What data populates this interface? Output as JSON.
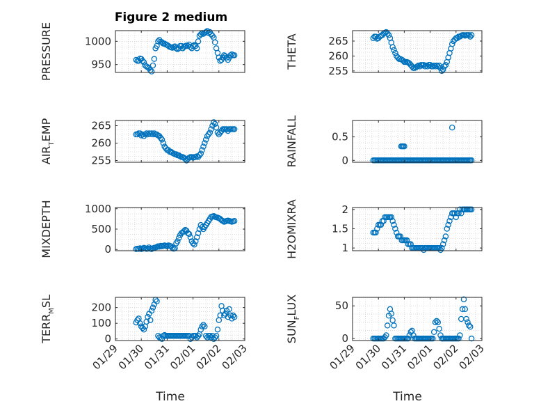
{
  "figure_title": "Figure 2 medium",
  "xlabel": "Time",
  "x_ticks": [
    "01/29",
    "01/30",
    "01/31",
    "02/01",
    "02/02",
    "02/03"
  ],
  "marker_color": "#0072bd",
  "grid_color": "#c8c8c8",
  "axis_color": "#262626",
  "chart_data": [
    {
      "type": "scatter",
      "ylabel": "PRESSURE",
      "ylabel_sub": "",
      "ylabel_sub_index": 0,
      "ylim": [
        933,
        1023
      ],
      "yticks": [
        950,
        1000
      ],
      "ytick_labels": [
        "950",
        "1000"
      ],
      "grid": true,
      "x": [
        0.8,
        0.85,
        0.9,
        0.95,
        1.0,
        1.05,
        1.1,
        1.15,
        1.2,
        1.25,
        1.3,
        1.35,
        1.4,
        1.45,
        1.5,
        1.55,
        1.6,
        1.65,
        1.7,
        1.75,
        1.8,
        1.85,
        1.9,
        1.95,
        2.0,
        2.05,
        2.1,
        2.15,
        2.2,
        2.25,
        2.3,
        2.35,
        2.4,
        2.45,
        2.5,
        2.55,
        2.6,
        2.65,
        2.7,
        2.75,
        2.8,
        2.85,
        2.9,
        2.95,
        3.0,
        3.05,
        3.1,
        3.15,
        3.2,
        3.25,
        3.3,
        3.35,
        3.4,
        3.45,
        3.5,
        3.55,
        3.6,
        3.65,
        3.7,
        3.75,
        3.8,
        3.85,
        3.9,
        3.95,
        4.0,
        4.05,
        4.1,
        4.15,
        4.2,
        4.25,
        4.3,
        4.35,
        4.4,
        4.45,
        4.5,
        4.55,
        4.6
      ],
      "y": [
        960,
        958,
        958,
        963,
        962,
        958,
        955,
        948,
        946,
        944,
        942,
        938,
        935,
        948,
        962,
        985,
        990,
        1000,
        1003,
        999,
        998,
        995,
        995,
        993,
        992,
        990,
        988,
        987,
        986,
        988,
        989,
        985,
        983,
        985,
        990,
        990,
        985,
        988,
        990,
        991,
        990,
        993,
        988,
        985,
        990,
        992,
        990,
        985,
        1000,
        1012,
        1015,
        1018,
        1016,
        1018,
        1020,
        1022,
        1018,
        1020,
        1015,
        1012,
        1008,
        998,
        985,
        975,
        965,
        958,
        960,
        965,
        970,
        968,
        965,
        960,
        965,
        970,
        972,
        970,
        970
      ]
    },
    {
      "type": "scatter",
      "ylabel": "THETA",
      "ylabel_sub": "",
      "ylabel_sub_index": 0,
      "ylim": [
        254.5,
        268.5
      ],
      "yticks": [
        255,
        260,
        265
      ],
      "ytick_labels": [
        "255",
        "260",
        "265"
      ],
      "grid": true,
      "x": [
        0.8,
        0.85,
        0.9,
        0.95,
        1.0,
        1.05,
        1.1,
        1.15,
        1.2,
        1.25,
        1.3,
        1.35,
        1.4,
        1.45,
        1.5,
        1.55,
        1.6,
        1.65,
        1.7,
        1.75,
        1.8,
        1.85,
        1.9,
        1.95,
        2.0,
        2.05,
        2.1,
        2.15,
        2.2,
        2.25,
        2.3,
        2.35,
        2.4,
        2.45,
        2.5,
        2.55,
        2.6,
        2.65,
        2.7,
        2.75,
        2.8,
        2.85,
        2.9,
        2.95,
        3.0,
        3.05,
        3.1,
        3.15,
        3.2,
        3.25,
        3.3,
        3.35,
        3.4,
        3.45,
        3.5,
        3.55,
        3.6,
        3.65,
        3.7,
        3.75,
        3.8,
        3.85,
        3.9,
        3.95,
        4.0,
        4.05,
        4.1,
        4.15,
        4.2,
        4.25,
        4.3,
        4.35,
        4.4,
        4.45,
        4.5,
        4.55,
        4.6
      ],
      "y": [
        266,
        266.5,
        266.5,
        265.8,
        266,
        266.5,
        266.8,
        267,
        267.5,
        267.8,
        268,
        267.5,
        267,
        266,
        264.5,
        263,
        262,
        261,
        260,
        259.5,
        259,
        259,
        258.8,
        258.5,
        258,
        258,
        258,
        257.8,
        257.5,
        257,
        256.5,
        256,
        256,
        256.2,
        256.5,
        256.8,
        256.5,
        257,
        256.8,
        257,
        256.5,
        256.8,
        256.5,
        257,
        257,
        256.5,
        256.5,
        256.8,
        256.5,
        256.8,
        256.5,
        256.8,
        256,
        255,
        255.5,
        256.5,
        257,
        258,
        259.5,
        261,
        262.5,
        264,
        265,
        265.5,
        266,
        266,
        266.5,
        266.5,
        266.8,
        267,
        267,
        266.8,
        267,
        267,
        267,
        266.5,
        267
      ]
    },
    {
      "type": "scatter",
      "ylabel": "AIR",
      "ylabel_sub": "T",
      "ylabel_sub_index": 3,
      "ylabel_tail": "EMP",
      "ylim": [
        254.5,
        266.5
      ],
      "yticks": [
        255,
        260,
        265
      ],
      "ytick_labels": [
        "255",
        "260",
        "265"
      ],
      "grid": true,
      "x": [
        0.8,
        0.85,
        0.9,
        0.95,
        1.0,
        1.05,
        1.1,
        1.15,
        1.2,
        1.25,
        1.3,
        1.35,
        1.4,
        1.45,
        1.5,
        1.55,
        1.6,
        1.65,
        1.7,
        1.75,
        1.8,
        1.85,
        1.9,
        1.95,
        2.0,
        2.05,
        2.1,
        2.15,
        2.2,
        2.25,
        2.3,
        2.35,
        2.4,
        2.45,
        2.5,
        2.55,
        2.6,
        2.65,
        2.7,
        2.75,
        2.8,
        2.85,
        2.9,
        2.95,
        3.0,
        3.05,
        3.1,
        3.15,
        3.2,
        3.25,
        3.3,
        3.35,
        3.4,
        3.45,
        3.5,
        3.55,
        3.6,
        3.65,
        3.7,
        3.75,
        3.8,
        3.85,
        3.9,
        3.95,
        4.0,
        4.05,
        4.1,
        4.15,
        4.2,
        4.25,
        4.3,
        4.35,
        4.4,
        4.45,
        4.5,
        4.55,
        4.6
      ],
      "y": [
        262.5,
        262.5,
        262.8,
        262.8,
        262.2,
        262.5,
        262,
        262.5,
        262.8,
        262.5,
        262.8,
        262.6,
        262.8,
        262.5,
        262.8,
        262.5,
        262.5,
        262.2,
        262,
        261.5,
        261,
        260,
        259,
        258.5,
        258,
        258,
        257.5,
        257.5,
        257.2,
        257,
        256.8,
        256.8,
        256.5,
        256.5,
        256.2,
        256,
        256,
        255.8,
        255.5,
        255,
        255.5,
        255.8,
        256,
        256,
        255.8,
        256,
        256,
        256.2,
        256,
        256.5,
        257,
        258,
        259,
        260,
        261,
        262,
        262.5,
        263,
        264,
        265,
        266,
        265.5,
        264.5,
        263,
        262.5,
        263,
        263.5,
        264,
        264,
        264,
        264,
        263.5,
        264,
        264,
        264,
        264,
        264
      ]
    },
    {
      "type": "scatter",
      "ylabel": "RAINFALL",
      "ylabel_sub": "",
      "ylabel_sub_index": 0,
      "ylim": [
        -0.04,
        0.85
      ],
      "yticks": [
        0,
        0.5
      ],
      "ytick_labels": [
        "0",
        "0.5"
      ],
      "grid": true,
      "x": [
        0.8,
        0.85,
        0.9,
        0.95,
        1.0,
        1.05,
        1.1,
        1.15,
        1.2,
        1.25,
        1.3,
        1.35,
        1.4,
        1.45,
        1.5,
        1.55,
        1.6,
        1.65,
        1.7,
        1.75,
        1.8,
        1.85,
        1.9,
        1.95,
        2.0,
        2.05,
        2.1,
        2.15,
        2.2,
        2.25,
        2.3,
        2.35,
        2.4,
        2.45,
        2.5,
        2.55,
        2.6,
        2.65,
        2.7,
        2.75,
        2.8,
        2.85,
        2.9,
        2.95,
        3.0,
        3.05,
        3.1,
        3.15,
        3.2,
        3.25,
        3.3,
        3.35,
        3.4,
        3.45,
        3.5,
        3.55,
        3.6,
        3.65,
        3.7,
        3.75,
        3.8,
        3.85,
        3.9,
        3.95,
        4.0,
        4.05,
        4.1,
        4.15,
        4.2,
        4.25,
        4.3,
        4.35,
        4.4,
        4.45,
        4.5,
        4.55,
        4.6,
        1.88,
        1.92,
        1.96,
        2.0,
        3.85
      ],
      "y": [
        0,
        0,
        0,
        0,
        0,
        0,
        0,
        0,
        0,
        0,
        0,
        0,
        0,
        0,
        0,
        0,
        0,
        0,
        0,
        0,
        0,
        0,
        0,
        0,
        0,
        0,
        0,
        0,
        0,
        0,
        0,
        0,
        0,
        0,
        0,
        0,
        0,
        0,
        0,
        0,
        0,
        0,
        0,
        0,
        0,
        0,
        0,
        0,
        0,
        0,
        0,
        0,
        0,
        0,
        0,
        0,
        0,
        0,
        0,
        0,
        0,
        0,
        0,
        0,
        0,
        0,
        0,
        0,
        0,
        0,
        0,
        0,
        0,
        0,
        0,
        0,
        0,
        0.3,
        0.3,
        0.3,
        0.3,
        0.7
      ]
    },
    {
      "type": "scatter",
      "ylabel": "MIXDEPTH",
      "ylabel_sub": "",
      "ylabel_sub_index": 0,
      "ylim": [
        -30,
        1030
      ],
      "yticks": [
        0,
        500,
        1000
      ],
      "ytick_labels": [
        "0",
        "500",
        "1000"
      ],
      "grid": true,
      "x": [
        0.8,
        0.85,
        0.9,
        0.95,
        1.0,
        1.05,
        1.1,
        1.15,
        1.2,
        1.25,
        1.3,
        1.35,
        1.4,
        1.45,
        1.5,
        1.55,
        1.6,
        1.65,
        1.7,
        1.75,
        1.8,
        1.85,
        1.9,
        1.95,
        2.0,
        2.05,
        2.1,
        2.15,
        2.2,
        2.25,
        2.3,
        2.35,
        2.4,
        2.45,
        2.5,
        2.55,
        2.6,
        2.65,
        2.7,
        2.75,
        2.8,
        2.85,
        2.9,
        2.95,
        3.0,
        3.05,
        3.1,
        3.15,
        3.2,
        3.25,
        3.3,
        3.35,
        3.4,
        3.45,
        3.5,
        3.55,
        3.6,
        3.65,
        3.7,
        3.75,
        3.8,
        3.85,
        3.9,
        3.95,
        4.0,
        4.05,
        4.1,
        4.15,
        4.2,
        4.25,
        4.3,
        4.35,
        4.4,
        4.45,
        4.5,
        4.55,
        4.6
      ],
      "y": [
        10,
        20,
        15,
        30,
        10,
        20,
        40,
        30,
        15,
        20,
        50,
        20,
        10,
        30,
        40,
        50,
        60,
        80,
        70,
        90,
        80,
        90,
        100,
        90,
        80,
        100,
        90,
        80,
        40,
        20,
        30,
        150,
        200,
        280,
        350,
        400,
        420,
        450,
        480,
        460,
        400,
        380,
        300,
        200,
        150,
        120,
        200,
        300,
        400,
        500,
        600,
        550,
        500,
        550,
        600,
        650,
        700,
        750,
        800,
        810,
        820,
        800,
        790,
        780,
        770,
        750,
        720,
        700,
        680,
        690,
        700,
        710,
        700,
        690,
        680,
        690,
        700
      ]
    },
    {
      "type": "scatter",
      "ylabel": "H2OMIXRA",
      "ylabel_sub": "",
      "ylabel_sub_index": 0,
      "ylim": [
        0.93,
        2.05
      ],
      "yticks": [
        1,
        1.5,
        2
      ],
      "ytick_labels": [
        "1",
        "1.5",
        "2"
      ],
      "grid": true,
      "x": [
        0.8,
        0.85,
        0.9,
        0.95,
        1.0,
        1.05,
        1.1,
        1.15,
        1.2,
        1.25,
        1.3,
        1.35,
        1.4,
        1.45,
        1.5,
        1.55,
        1.6,
        1.65,
        1.7,
        1.75,
        1.8,
        1.85,
        1.9,
        1.95,
        2.0,
        2.05,
        2.1,
        2.15,
        2.2,
        2.25,
        2.3,
        2.35,
        2.4,
        2.45,
        2.5,
        2.55,
        2.6,
        2.65,
        2.7,
        2.75,
        2.8,
        2.85,
        2.9,
        2.95,
        3.0,
        3.05,
        3.1,
        3.15,
        3.2,
        3.25,
        3.3,
        3.35,
        3.4,
        3.45,
        3.5,
        3.55,
        3.6,
        3.65,
        3.7,
        3.75,
        3.8,
        3.85,
        3.9,
        3.95,
        4.0,
        4.05,
        4.1,
        4.15,
        4.2,
        4.25,
        4.3,
        4.35,
        4.4,
        4.45,
        4.5,
        4.55,
        4.6
      ],
      "y": [
        1.4,
        1.4,
        1.4,
        1.5,
        1.6,
        1.6,
        1.6,
        1.7,
        1.7,
        1.8,
        1.8,
        1.8,
        1.8,
        1.8,
        1.8,
        1.7,
        1.6,
        1.5,
        1.4,
        1.3,
        1.3,
        1.3,
        1.2,
        1.2,
        1.2,
        1.2,
        1.2,
        1.1,
        1.1,
        1.1,
        1.0,
        1.0,
        1.0,
        1.0,
        1.0,
        1.0,
        1.0,
        1.0,
        1.0,
        0.95,
        1.0,
        1.0,
        1.0,
        1.0,
        1.0,
        1.0,
        1.0,
        1.0,
        1.0,
        1.0,
        1.0,
        1.0,
        0.95,
        1.0,
        1.1,
        1.2,
        1.3,
        1.5,
        1.6,
        1.7,
        1.8,
        1.9,
        1.9,
        1.9,
        1.8,
        1.9,
        1.9,
        2.0,
        1.9,
        2.0,
        2.0,
        2.0,
        2.0,
        2.0,
        2.0,
        2.0,
        2.0
      ]
    },
    {
      "type": "scatter",
      "ylabel": "TERR",
      "ylabel_sub": "M",
      "ylabel_sub_index": 4,
      "ylabel_tail": "SL",
      "ylim": [
        -10,
        265
      ],
      "yticks": [
        0,
        100,
        200
      ],
      "ytick_labels": [
        "0",
        "100",
        "200"
      ],
      "grid": true,
      "x": [
        0.8,
        0.85,
        0.9,
        0.95,
        1.0,
        1.05,
        1.1,
        1.15,
        1.2,
        1.25,
        1.3,
        1.35,
        1.4,
        1.45,
        1.5,
        1.55,
        1.6,
        1.65,
        1.7,
        1.75,
        1.8,
        1.85,
        1.9,
        1.95,
        2.0,
        2.05,
        2.1,
        2.15,
        2.2,
        2.25,
        2.3,
        2.35,
        2.4,
        2.45,
        2.5,
        2.55,
        2.6,
        2.65,
        2.7,
        2.75,
        2.8,
        2.85,
        2.9,
        2.95,
        3.0,
        3.05,
        3.1,
        3.15,
        3.2,
        3.25,
        3.3,
        3.35,
        3.4,
        3.45,
        3.5,
        3.55,
        3.6,
        3.65,
        3.7,
        3.75,
        3.8,
        3.85,
        3.9,
        3.95,
        4.0,
        4.05,
        4.1,
        4.15,
        4.2,
        4.25,
        4.3,
        4.35,
        4.4,
        4.45,
        4.5,
        4.55,
        4.6
      ],
      "y": [
        105,
        120,
        130,
        100,
        80,
        70,
        60,
        80,
        110,
        140,
        160,
        120,
        180,
        200,
        220,
        250,
        240,
        20,
        10,
        5,
        0,
        20,
        25,
        20,
        20,
        20,
        20,
        20,
        20,
        20,
        20,
        20,
        20,
        20,
        20,
        20,
        20,
        20,
        20,
        20,
        20,
        20,
        0,
        10,
        20,
        20,
        20,
        10,
        20,
        30,
        60,
        80,
        90,
        80,
        20,
        10,
        20,
        20,
        10,
        20,
        0,
        10,
        20,
        60,
        120,
        150,
        210,
        180,
        150,
        160,
        180,
        140,
        190,
        150,
        130,
        150,
        140
      ]
    },
    {
      "type": "scatter",
      "ylabel": "SUN",
      "ylabel_sub": "F",
      "ylabel_sub_index": 3,
      "ylabel_tail": "LUX",
      "ylim": [
        -3,
        63
      ],
      "yticks": [
        0,
        50
      ],
      "ytick_labels": [
        "0",
        "50"
      ],
      "grid": true,
      "x": [
        0.8,
        0.85,
        0.9,
        0.95,
        1.0,
        1.05,
        1.1,
        1.15,
        1.2,
        1.25,
        1.3,
        1.35,
        1.4,
        1.45,
        1.5,
        1.55,
        1.6,
        1.65,
        1.7,
        1.75,
        1.8,
        1.85,
        1.9,
        1.95,
        2.0,
        2.05,
        2.1,
        2.15,
        2.2,
        2.25,
        2.3,
        2.35,
        2.4,
        2.45,
        2.5,
        2.55,
        2.6,
        2.65,
        2.7,
        2.75,
        2.8,
        2.85,
        2.9,
        2.95,
        3.0,
        3.05,
        3.1,
        3.15,
        3.2,
        3.25,
        3.3,
        3.35,
        3.4,
        3.45,
        3.5,
        3.55,
        3.6,
        3.65,
        3.7,
        3.75,
        3.8,
        3.85,
        3.9,
        3.95,
        4.0,
        4.05,
        4.1,
        4.15,
        4.2,
        4.25,
        4.3,
        4.35,
        4.4,
        4.45,
        4.5,
        4.55,
        4.6
      ],
      "y": [
        0,
        0,
        0,
        0,
        0,
        0,
        0,
        0,
        0,
        2,
        5,
        20,
        35,
        45,
        38,
        28,
        20,
        0,
        0,
        0,
        0,
        0,
        0,
        0,
        0,
        0,
        0,
        0,
        5,
        10,
        12,
        5,
        0,
        0,
        0,
        0,
        0,
        0,
        0,
        0,
        0,
        0,
        0,
        0,
        0,
        0,
        0,
        10,
        25,
        27,
        25,
        15,
        5,
        0,
        0,
        0,
        0,
        0,
        0,
        0,
        0,
        0,
        0,
        0,
        0,
        0,
        0,
        5,
        30,
        45,
        60,
        45,
        30,
        25,
        20,
        18,
        0
      ]
    }
  ]
}
